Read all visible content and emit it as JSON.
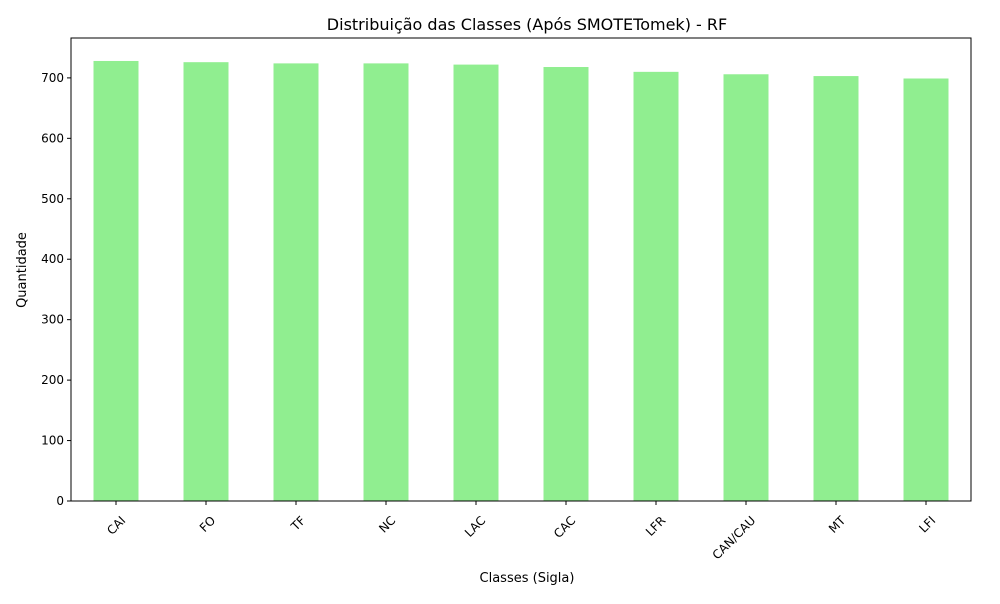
{
  "chart_data": {
    "type": "bar",
    "title": "Distribuição das Classes (Após SMOTETomek) - RF",
    "xlabel": "Classes (Sigla)",
    "ylabel": "Quantidade",
    "categories": [
      "CAI",
      "FO",
      "TF",
      "NC",
      "LAC",
      "CAC",
      "LFR",
      "CAN/CAU",
      "MT",
      "LFI"
    ],
    "values": [
      728,
      726,
      724,
      724,
      722,
      718,
      710,
      706,
      703,
      699
    ],
    "ylim": [
      0,
      766
    ],
    "yticks": [
      0,
      100,
      200,
      300,
      400,
      500,
      600,
      700
    ],
    "bar_color": "#90ee90",
    "grid": false,
    "legend": "none"
  }
}
